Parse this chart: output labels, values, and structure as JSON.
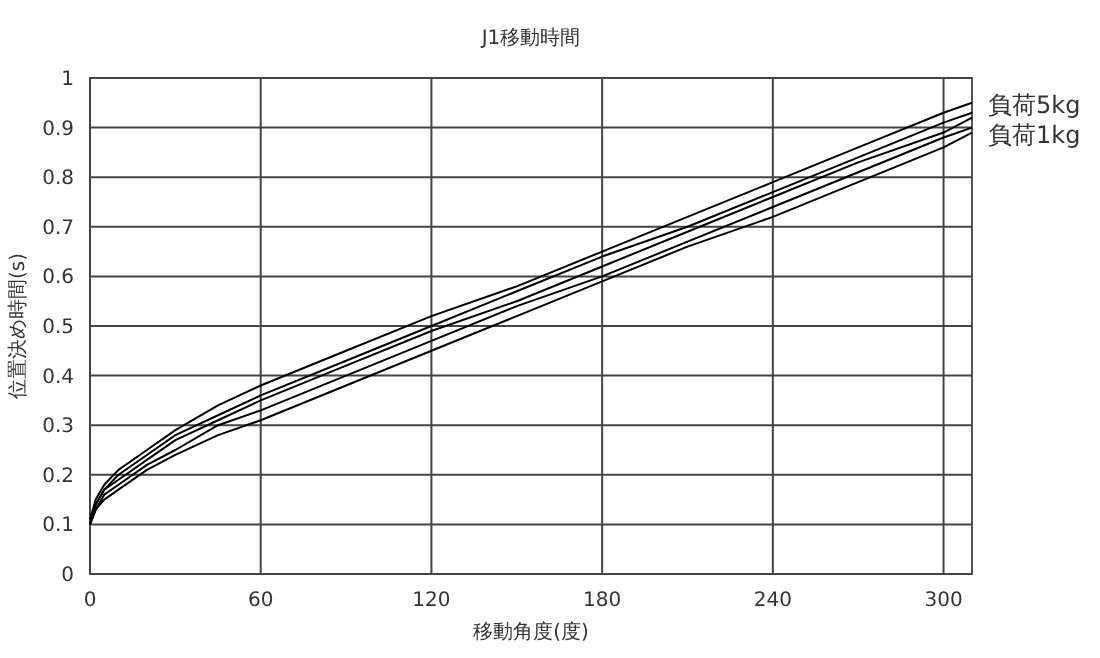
{
  "chart_data": {
    "type": "line",
    "title": "J1移動時間",
    "xlabel": "移動角度(度)",
    "ylabel": "位置決め時間(s)",
    "x": [
      0,
      2,
      5,
      10,
      20,
      30,
      45,
      60,
      90,
      120,
      150,
      180,
      210,
      240,
      270,
      300,
      310
    ],
    "series": [
      {
        "name": "負荷5kg",
        "color": "#000000",
        "values": [
          0.11,
          0.15,
          0.18,
          0.21,
          0.25,
          0.29,
          0.34,
          0.38,
          0.45,
          0.52,
          0.58,
          0.65,
          0.72,
          0.79,
          0.86,
          0.93,
          0.95
        ]
      },
      {
        "color": "#000000",
        "values": [
          0.11,
          0.14,
          0.17,
          0.2,
          0.24,
          0.28,
          0.32,
          0.36,
          0.43,
          0.5,
          0.57,
          0.64,
          0.7,
          0.77,
          0.84,
          0.91,
          0.93
        ]
      },
      {
        "color": "#000000",
        "values": [
          0.1,
          0.14,
          0.17,
          0.19,
          0.23,
          0.27,
          0.31,
          0.35,
          0.42,
          0.49,
          0.55,
          0.62,
          0.69,
          0.76,
          0.83,
          0.89,
          0.92
        ]
      },
      {
        "color": "#000000",
        "values": [
          0.1,
          0.13,
          0.16,
          0.18,
          0.22,
          0.25,
          0.3,
          0.33,
          0.4,
          0.47,
          0.54,
          0.6,
          0.67,
          0.74,
          0.81,
          0.88,
          0.9
        ]
      },
      {
        "name": "負荷1kg",
        "color": "#000000",
        "values": [
          0.1,
          0.13,
          0.15,
          0.17,
          0.21,
          0.24,
          0.28,
          0.31,
          0.38,
          0.45,
          0.52,
          0.59,
          0.66,
          0.72,
          0.79,
          0.86,
          0.89
        ]
      }
    ],
    "xlim": [
      0,
      310
    ],
    "ylim": [
      0,
      1
    ],
    "xticks": [
      0,
      60,
      120,
      180,
      240,
      300
    ],
    "yticks": [
      0,
      0.1,
      0.2,
      0.3,
      0.4,
      0.5,
      0.6,
      0.7,
      0.8,
      0.9,
      1
    ],
    "grid": true
  }
}
